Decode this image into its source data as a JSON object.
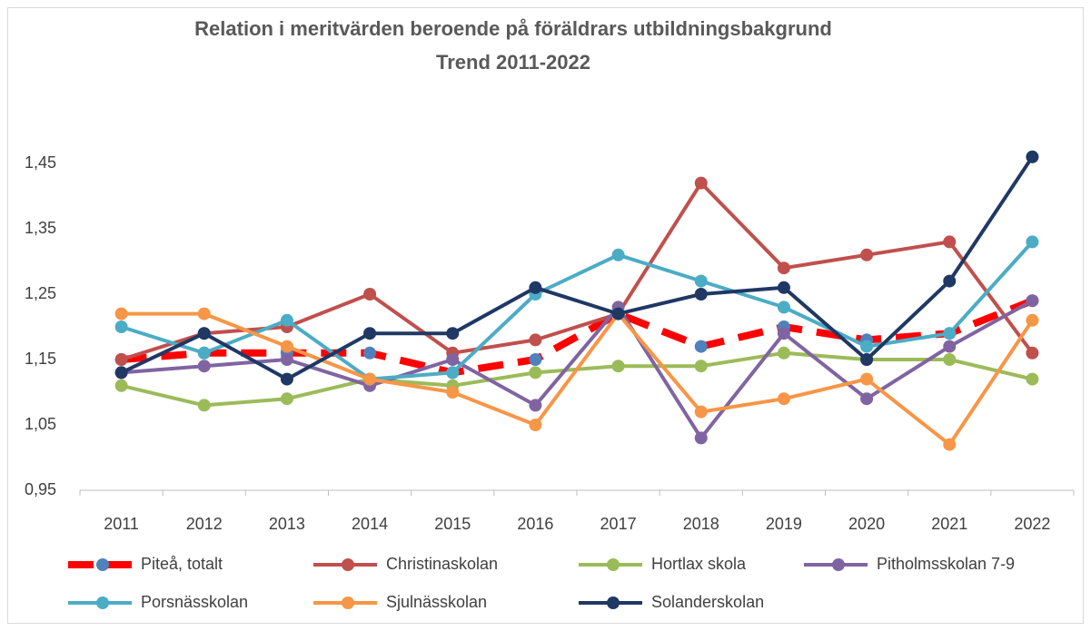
{
  "chart_data": {
    "type": "line",
    "title": "Relation i meritvärden beroende på föräldrars utbildningsbakgrund",
    "subtitle": "Trend 2011-2022",
    "categories": [
      "2011",
      "2012",
      "2013",
      "2014",
      "2015",
      "2016",
      "2017",
      "2018",
      "2019",
      "2020",
      "2021",
      "2022"
    ],
    "series": [
      {
        "name": "Piteå, totalt",
        "color": "#ff0000",
        "marker_color": "#4f81bd",
        "dashed": true,
        "values": [
          1.15,
          1.16,
          1.16,
          1.16,
          1.13,
          1.15,
          1.22,
          1.17,
          1.2,
          1.18,
          1.19,
          1.24
        ]
      },
      {
        "name": "Christinaskolan",
        "color": "#c0504d",
        "values": [
          1.15,
          1.19,
          1.2,
          1.25,
          1.16,
          1.18,
          1.22,
          1.42,
          1.29,
          1.31,
          1.33,
          1.16
        ]
      },
      {
        "name": "Hortlax skola",
        "color": "#9bbb59",
        "values": [
          1.11,
          1.08,
          1.09,
          1.12,
          1.11,
          1.13,
          1.14,
          1.14,
          1.16,
          1.15,
          1.15,
          1.12
        ]
      },
      {
        "name": "Pitholmsskolan 7-9",
        "color": "#8064a2",
        "values": [
          1.13,
          1.14,
          1.15,
          1.11,
          1.15,
          1.08,
          1.23,
          1.03,
          1.19,
          1.09,
          1.17,
          1.24
        ]
      },
      {
        "name": "Porsnässkolan",
        "color": "#4bacc6",
        "values": [
          1.2,
          1.16,
          1.21,
          1.12,
          1.13,
          1.25,
          1.31,
          1.27,
          1.23,
          1.17,
          1.19,
          1.33
        ]
      },
      {
        "name": "Sjulnässkolan",
        "color": "#f79646",
        "values": [
          1.22,
          1.22,
          1.17,
          1.12,
          1.1,
          1.05,
          1.22,
          1.07,
          1.09,
          1.12,
          1.02,
          1.21
        ]
      },
      {
        "name": "Solanderskolan",
        "color": "#1f3864",
        "values": [
          1.13,
          1.19,
          1.12,
          1.19,
          1.19,
          1.26,
          1.22,
          1.25,
          1.26,
          1.15,
          1.27,
          1.46
        ]
      }
    ],
    "ylim": [
      0.95,
      1.55
    ],
    "yticks": [
      {
        "value": 0.95,
        "label": "0,95"
      },
      {
        "value": 1.05,
        "label": "1,05"
      },
      {
        "value": 1.15,
        "label": "1,15"
      },
      {
        "value": 1.25,
        "label": "1,25"
      },
      {
        "value": 1.35,
        "label": "1,35"
      },
      {
        "value": 1.45,
        "label": "1,45"
      }
    ],
    "grid": false
  }
}
